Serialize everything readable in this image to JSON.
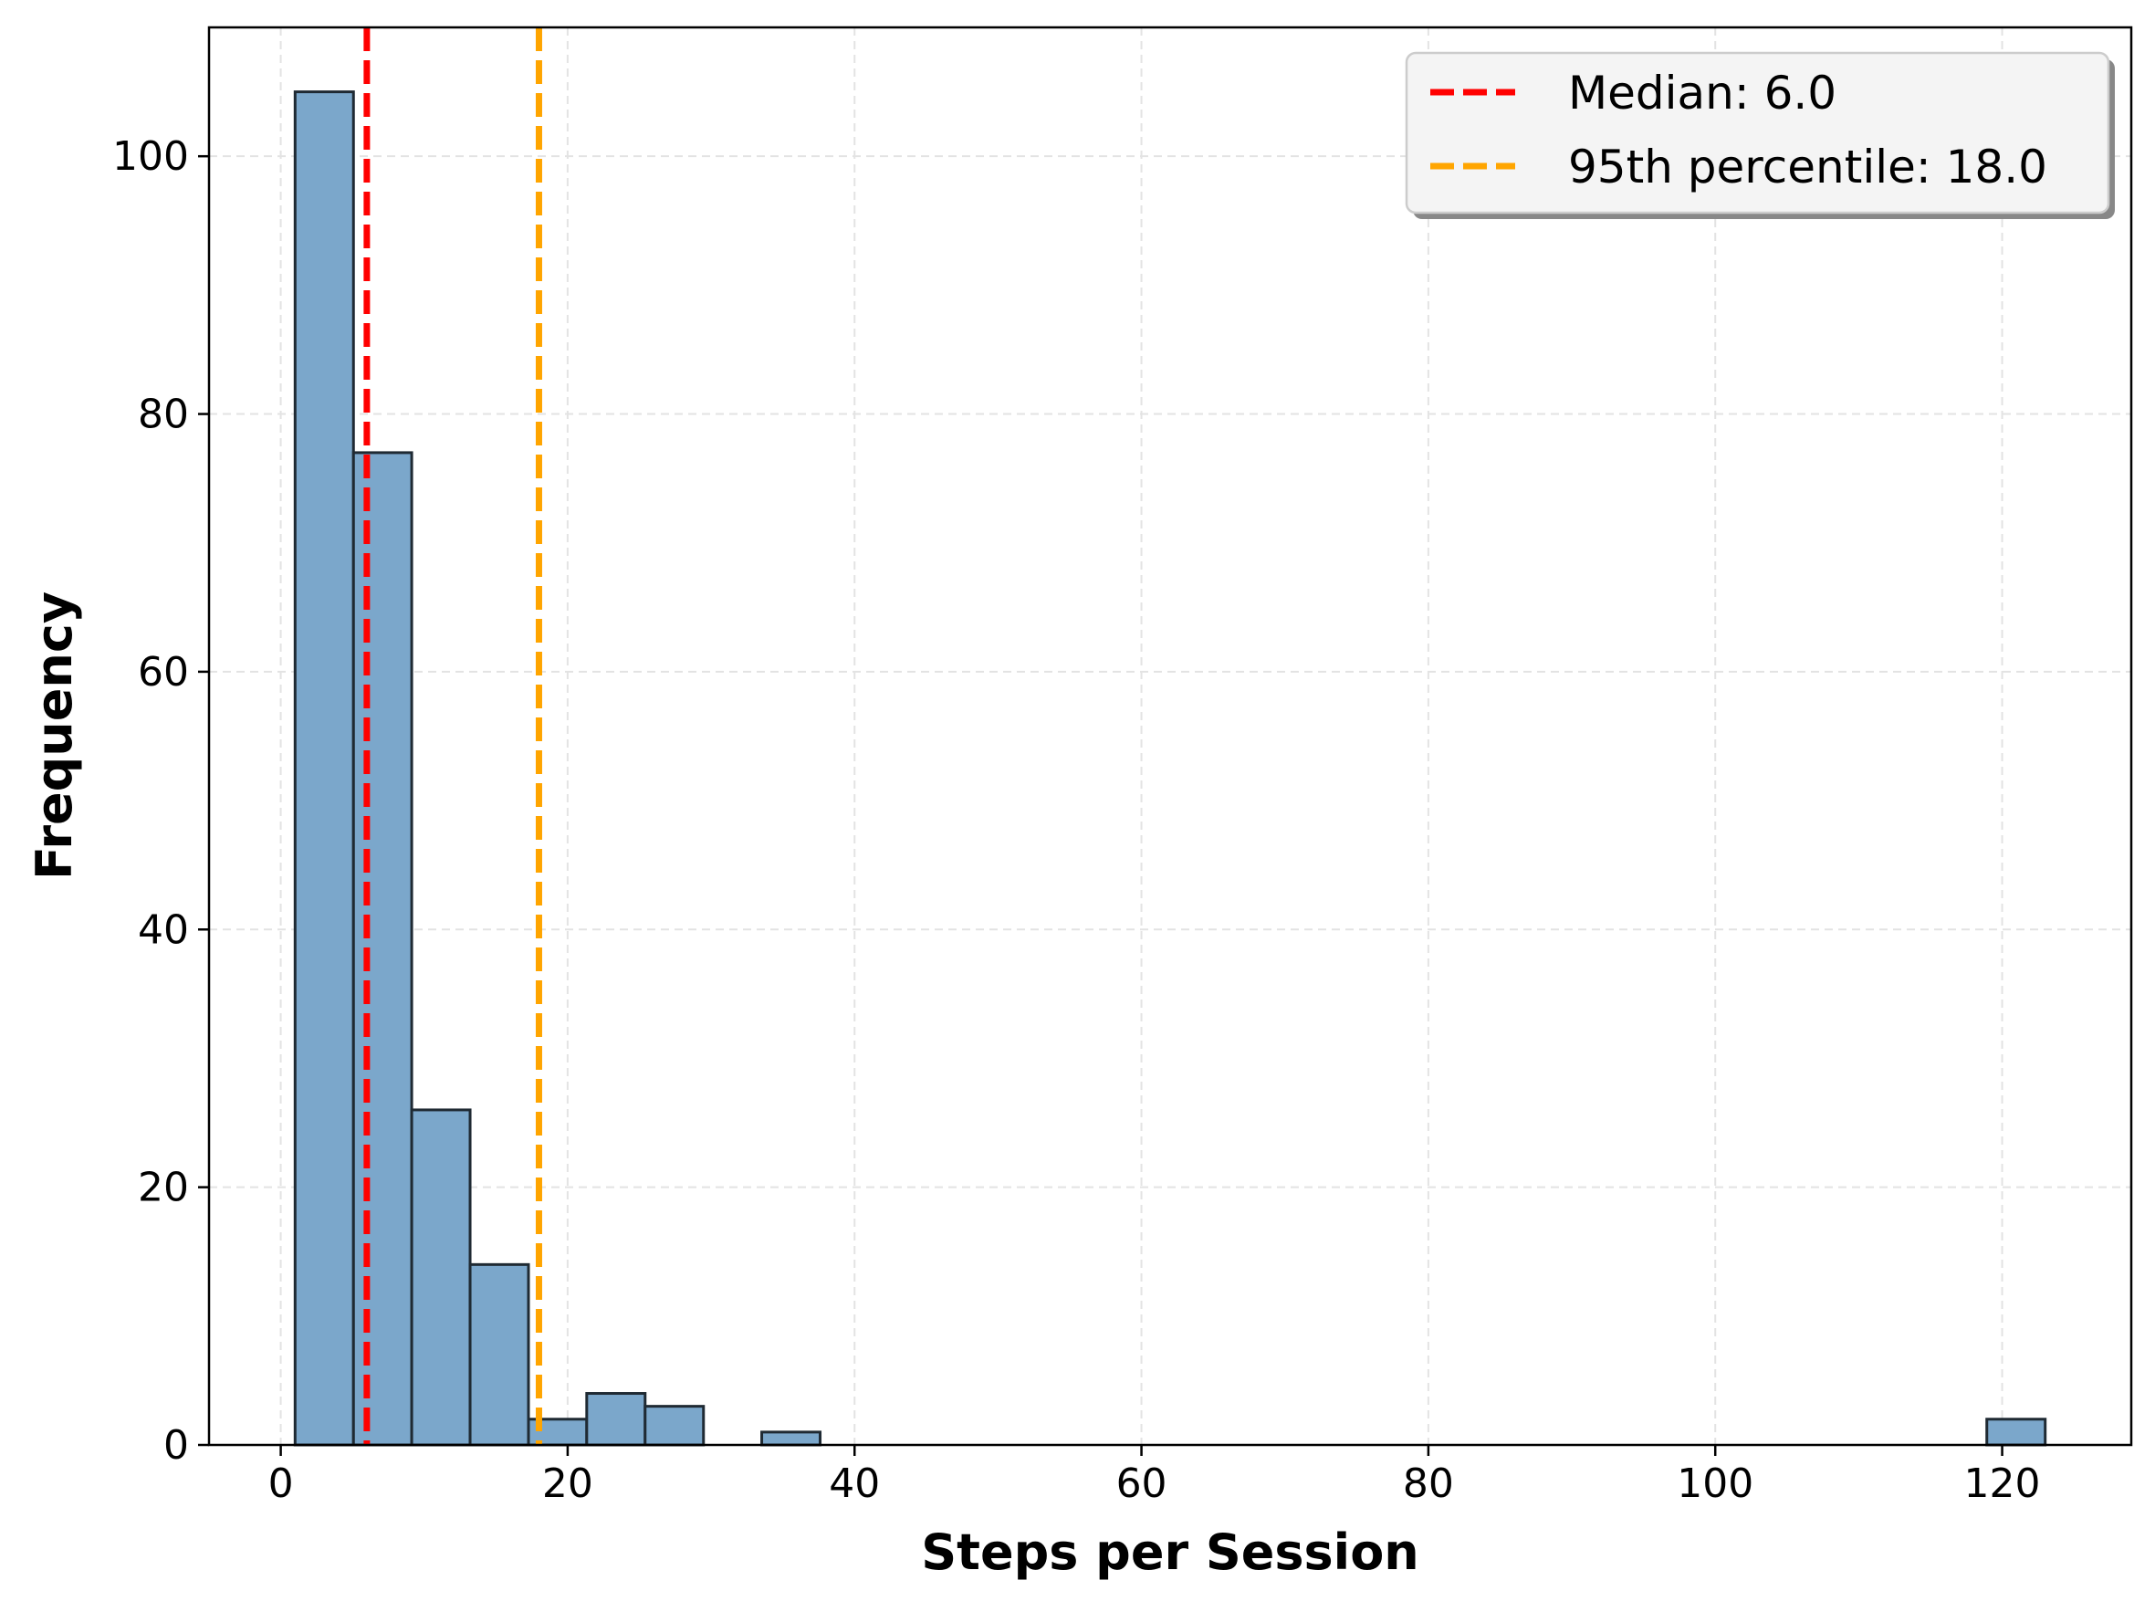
{
  "chart_data": {
    "type": "bar",
    "title": "",
    "xlabel": "Steps per Session",
    "ylabel": "Frequency",
    "xlim": [
      -5,
      129
    ],
    "ylim": [
      0,
      110
    ],
    "xticks": [
      0,
      20,
      40,
      60,
      80,
      100,
      120
    ],
    "yticks": [
      0,
      20,
      40,
      60,
      80,
      100
    ],
    "grid": true,
    "legend_position": "top-right",
    "bar_color": "#7BA7CB",
    "bar_edge_color": "#1f2a33",
    "bins": [
      {
        "x0": 1.0,
        "x1": 5.07,
        "value": 105
      },
      {
        "x0": 5.07,
        "x1": 9.13,
        "value": 77
      },
      {
        "x0": 9.13,
        "x1": 13.2,
        "value": 26
      },
      {
        "x0": 13.2,
        "x1": 17.27,
        "value": 14
      },
      {
        "x0": 17.27,
        "x1": 21.33,
        "value": 2
      },
      {
        "x0": 21.33,
        "x1": 25.4,
        "value": 4
      },
      {
        "x0": 25.4,
        "x1": 29.47,
        "value": 3
      },
      {
        "x0": 29.47,
        "x1": 33.53,
        "value": 0
      },
      {
        "x0": 33.53,
        "x1": 37.6,
        "value": 1
      },
      {
        "x0": 118.93,
        "x1": 123.0,
        "value": 2
      }
    ],
    "reference_lines": [
      {
        "label": "Median: 6.0",
        "x": 6.0,
        "color": "#ff0000"
      },
      {
        "label": "95th percentile: 18.0",
        "x": 18.0,
        "color": "#ffa500"
      }
    ]
  }
}
